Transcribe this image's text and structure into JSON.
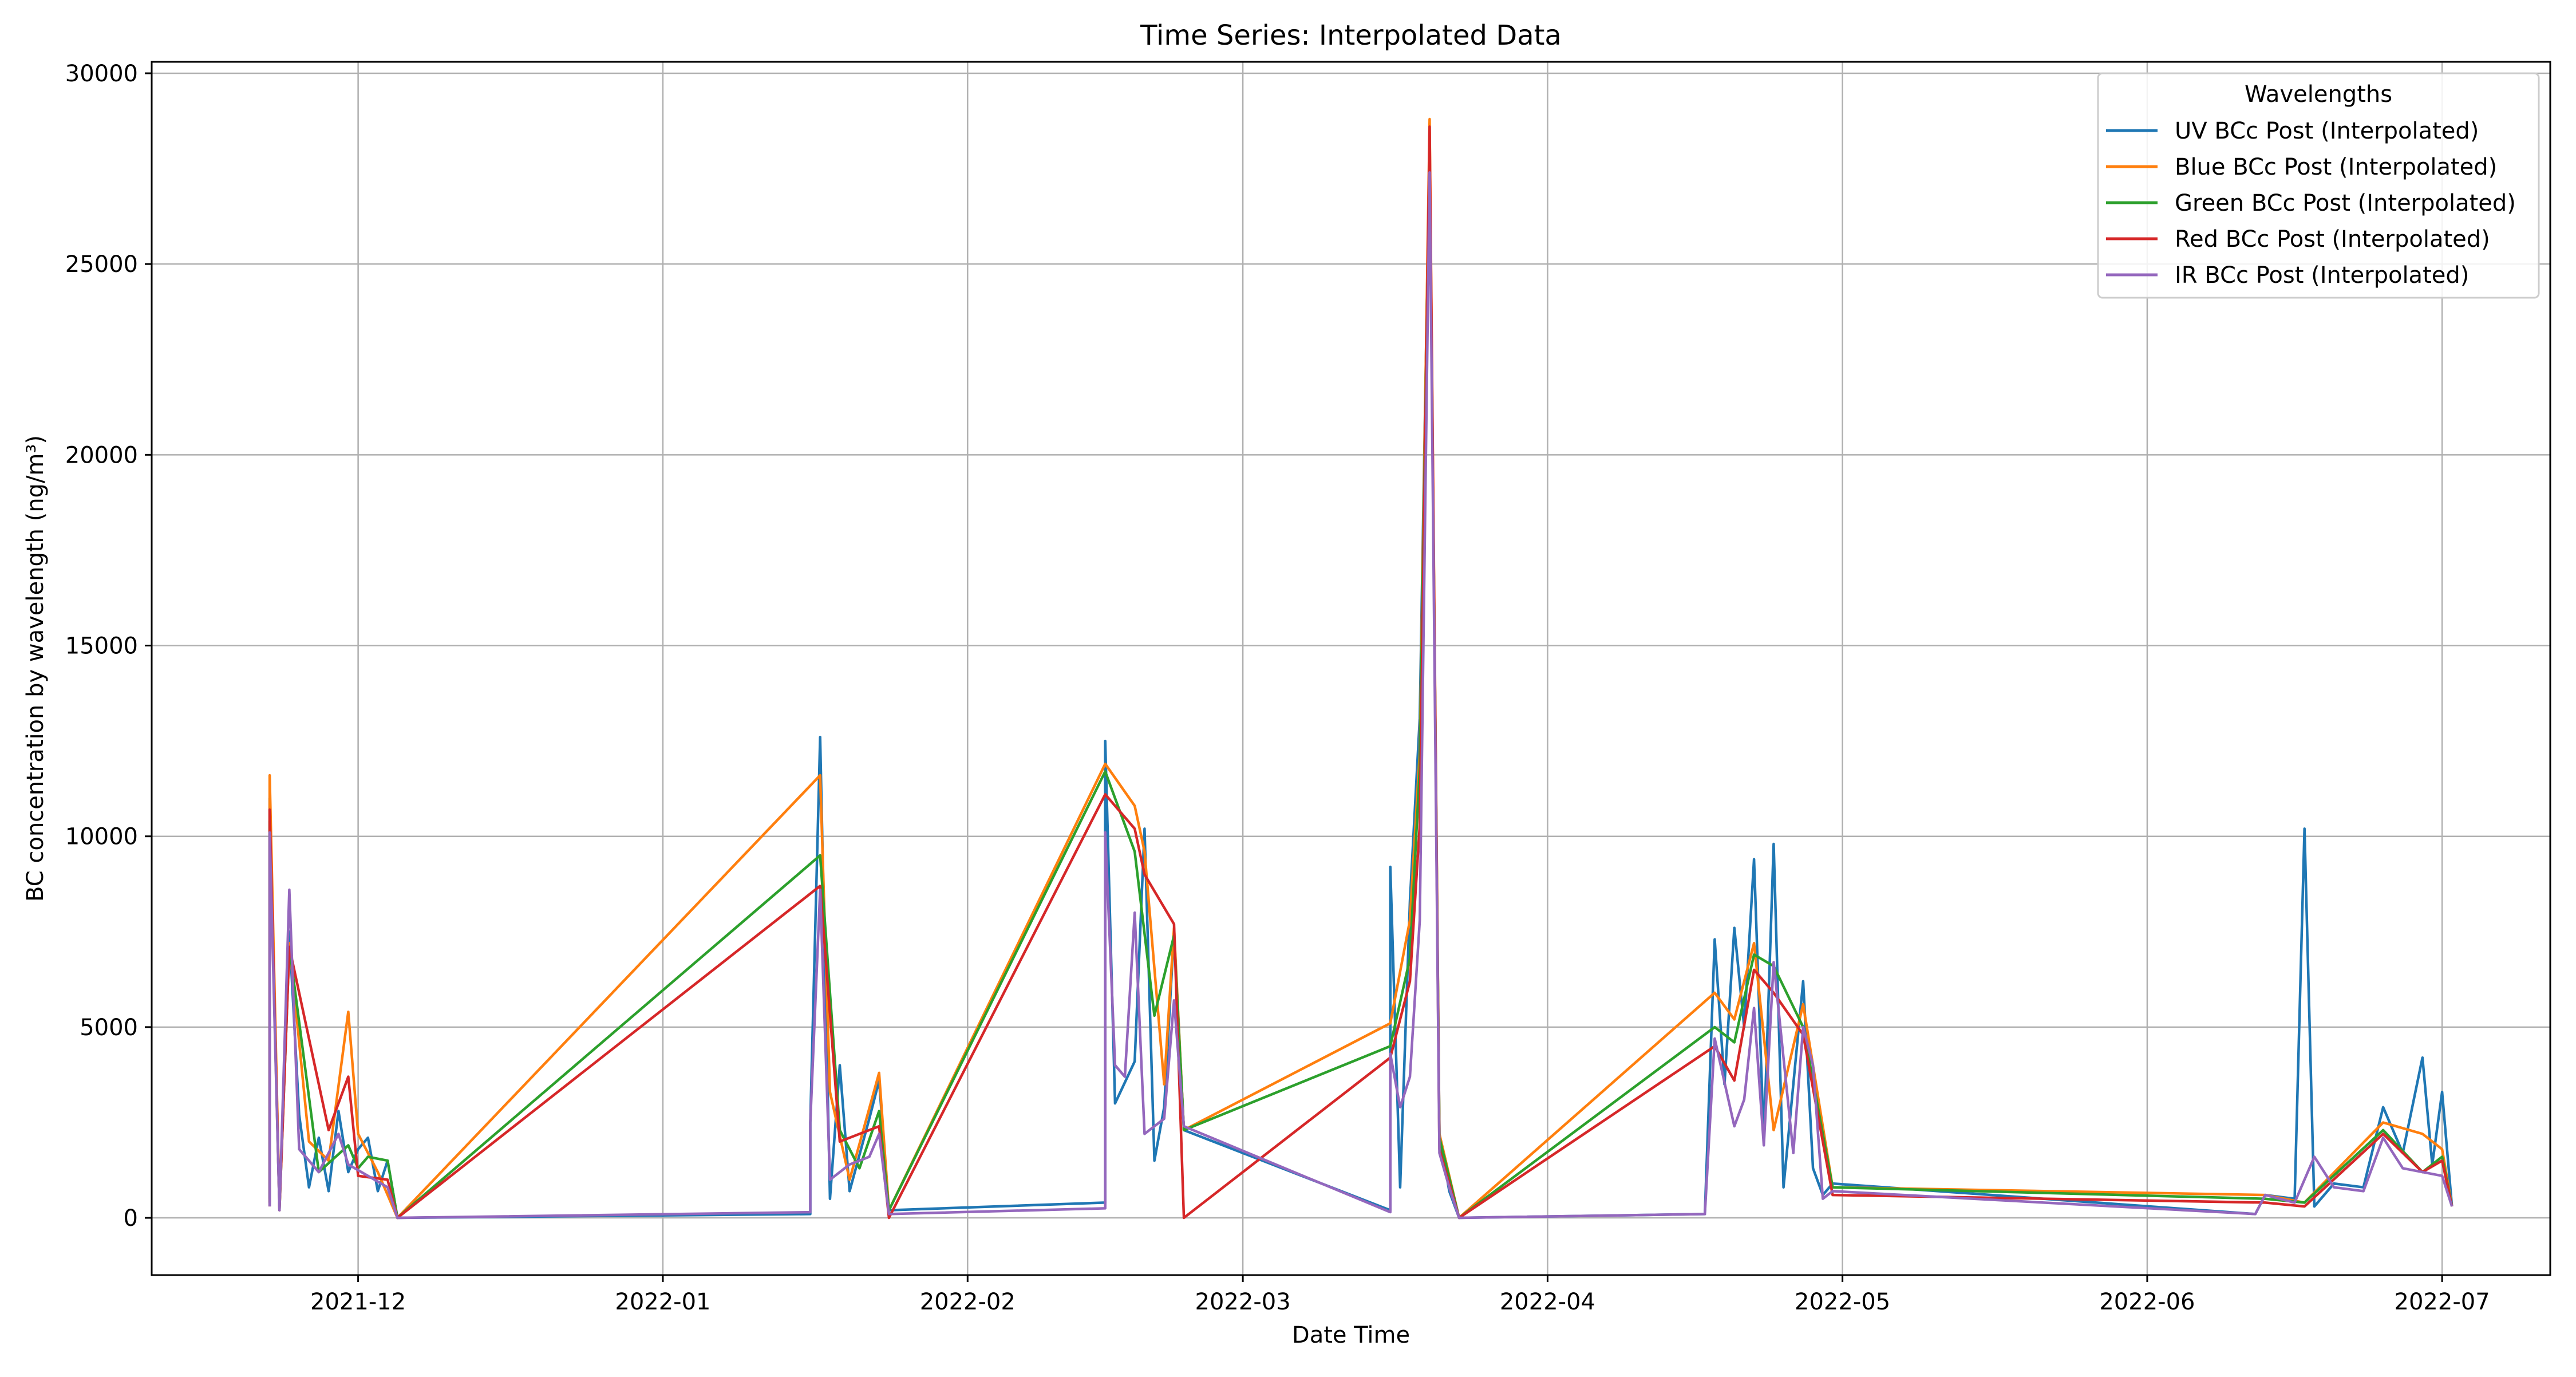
{
  "chart_data": {
    "type": "line",
    "title": "Time Series: Interpolated Data",
    "xlabel": "Date Time",
    "ylabel": "BC concentration by wavelength (ng/m³)",
    "x_tick_labels": [
      "2021-12",
      "2022-01",
      "2022-02",
      "2022-03",
      "2022-04",
      "2022-05",
      "2022-06",
      "2022-07"
    ],
    "x_tick_dates": [
      "2021-12-01",
      "2022-01-01",
      "2022-02-01",
      "2022-03-01",
      "2022-04-01",
      "2022-05-01",
      "2022-06-01",
      "2022-07-01"
    ],
    "xlim": [
      "2021-11-10",
      "2022-07-12"
    ],
    "y_ticks": [
      0,
      5000,
      10000,
      15000,
      20000,
      25000,
      30000
    ],
    "ylim": [
      -1500,
      30300
    ],
    "grid": true,
    "legend": {
      "title": "Wavelengths",
      "placement": "top-right"
    },
    "series": [
      {
        "name": "UV BCc Post (Interpolated)",
        "color": "#1f77b4",
        "points": [
          [
            "2021-11-22",
            500
          ],
          [
            "2021-11-22",
            11000
          ],
          [
            "2021-11-23",
            300
          ],
          [
            "2021-11-24",
            7500
          ],
          [
            "2021-11-25",
            2700
          ],
          [
            "2021-11-26",
            800
          ],
          [
            "2021-11-27",
            2100
          ],
          [
            "2021-11-28",
            700
          ],
          [
            "2021-11-29",
            2800
          ],
          [
            "2021-11-30",
            1200
          ],
          [
            "2021-12-01",
            1800
          ],
          [
            "2021-12-02",
            2100
          ],
          [
            "2021-12-03",
            700
          ],
          [
            "2021-12-04",
            1500
          ],
          [
            "2021-12-05",
            0
          ],
          [
            "2022-01-16",
            100
          ],
          [
            "2022-01-16",
            2500
          ],
          [
            "2022-01-17",
            12600
          ],
          [
            "2022-01-18",
            500
          ],
          [
            "2022-01-19",
            4000
          ],
          [
            "2022-01-20",
            700
          ],
          [
            "2022-01-22",
            2600
          ],
          [
            "2022-01-23",
            3600
          ],
          [
            "2022-01-24",
            200
          ],
          [
            "2022-02-15",
            400
          ],
          [
            "2022-02-15",
            12500
          ],
          [
            "2022-02-16",
            3000
          ],
          [
            "2022-02-18",
            4100
          ],
          [
            "2022-02-19",
            10200
          ],
          [
            "2022-02-20",
            1500
          ],
          [
            "2022-02-21",
            2900
          ],
          [
            "2022-02-22",
            7500
          ],
          [
            "2022-02-23",
            2300
          ],
          [
            "2022-03-16",
            200
          ],
          [
            "2022-03-16",
            9200
          ],
          [
            "2022-03-17",
            800
          ],
          [
            "2022-03-18",
            8300
          ],
          [
            "2022-03-19",
            13100
          ],
          [
            "2022-03-20",
            28200
          ],
          [
            "2022-03-21",
            2200
          ],
          [
            "2022-03-22",
            700
          ],
          [
            "2022-03-23",
            0
          ],
          [
            "2022-04-17",
            100
          ],
          [
            "2022-04-18",
            7300
          ],
          [
            "2022-04-19",
            3500
          ],
          [
            "2022-04-20",
            7600
          ],
          [
            "2022-04-21",
            5000
          ],
          [
            "2022-04-22",
            9400
          ],
          [
            "2022-04-23",
            2000
          ],
          [
            "2022-04-24",
            9800
          ],
          [
            "2022-04-25",
            800
          ],
          [
            "2022-04-27",
            6200
          ],
          [
            "2022-04-28",
            1300
          ],
          [
            "2022-04-29",
            600
          ],
          [
            "2022-04-30",
            900
          ],
          [
            "2022-06-12",
            100
          ],
          [
            "2022-06-13",
            600
          ],
          [
            "2022-06-16",
            500
          ],
          [
            "2022-06-17",
            10200
          ],
          [
            "2022-06-18",
            300
          ],
          [
            "2022-06-20",
            900
          ],
          [
            "2022-06-23",
            800
          ],
          [
            "2022-06-25",
            2900
          ],
          [
            "2022-06-27",
            1700
          ],
          [
            "2022-06-29",
            4200
          ],
          [
            "2022-06-30",
            1400
          ],
          [
            "2022-07-01",
            3300
          ],
          [
            "2022-07-02",
            300
          ]
        ]
      },
      {
        "name": "Blue BCc Post (Interpolated)",
        "color": "#ff7f0e",
        "points": [
          [
            "2021-11-22",
            400
          ],
          [
            "2021-11-22",
            11600
          ],
          [
            "2021-11-23",
            300
          ],
          [
            "2021-11-24",
            7200
          ],
          [
            "2021-11-26",
            2000
          ],
          [
            "2021-11-28",
            1500
          ],
          [
            "2021-11-30",
            5400
          ],
          [
            "2021-12-01",
            2200
          ],
          [
            "2021-12-03",
            1200
          ],
          [
            "2021-12-05",
            0
          ],
          [
            "2022-01-17",
            11600
          ],
          [
            "2022-01-18",
            3300
          ],
          [
            "2022-01-20",
            1000
          ],
          [
            "2022-01-23",
            3800
          ],
          [
            "2022-01-24",
            200
          ],
          [
            "2022-02-15",
            11900
          ],
          [
            "2022-02-18",
            10800
          ],
          [
            "2022-02-19",
            9600
          ],
          [
            "2022-02-21",
            3500
          ],
          [
            "2022-02-22",
            7600
          ],
          [
            "2022-02-23",
            2300
          ],
          [
            "2022-03-16",
            5100
          ],
          [
            "2022-03-18",
            7800
          ],
          [
            "2022-03-19",
            12200
          ],
          [
            "2022-03-20",
            28800
          ],
          [
            "2022-03-21",
            2200
          ],
          [
            "2022-03-23",
            0
          ],
          [
            "2022-04-18",
            5900
          ],
          [
            "2022-04-20",
            5200
          ],
          [
            "2022-04-22",
            7200
          ],
          [
            "2022-04-24",
            2300
          ],
          [
            "2022-04-27",
            5600
          ],
          [
            "2022-04-30",
            800
          ],
          [
            "2022-06-13",
            600
          ],
          [
            "2022-06-17",
            400
          ],
          [
            "2022-06-25",
            2500
          ],
          [
            "2022-06-29",
            2200
          ],
          [
            "2022-07-01",
            1800
          ],
          [
            "2022-07-02",
            300
          ]
        ]
      },
      {
        "name": "Green BCc Post (Interpolated)",
        "color": "#2ca02c",
        "points": [
          [
            "2021-11-22",
            400
          ],
          [
            "2021-11-22",
            10400
          ],
          [
            "2021-11-23",
            200
          ],
          [
            "2021-11-24",
            7100
          ],
          [
            "2021-11-27",
            1200
          ],
          [
            "2021-11-30",
            1900
          ],
          [
            "2021-12-01",
            1300
          ],
          [
            "2021-12-02",
            1600
          ],
          [
            "2021-12-04",
            1500
          ],
          [
            "2021-12-05",
            0
          ],
          [
            "2022-01-17",
            9500
          ],
          [
            "2022-01-19",
            2300
          ],
          [
            "2022-01-21",
            1300
          ],
          [
            "2022-01-23",
            2800
          ],
          [
            "2022-01-24",
            200
          ],
          [
            "2022-02-15",
            11700
          ],
          [
            "2022-02-18",
            9600
          ],
          [
            "2022-02-20",
            5300
          ],
          [
            "2022-02-22",
            7400
          ],
          [
            "2022-02-23",
            2300
          ],
          [
            "2022-03-16",
            4500
          ],
          [
            "2022-03-18",
            6800
          ],
          [
            "2022-03-19",
            11800
          ],
          [
            "2022-03-20",
            28100
          ],
          [
            "2022-03-21",
            2100
          ],
          [
            "2022-03-23",
            0
          ],
          [
            "2022-04-18",
            5000
          ],
          [
            "2022-04-20",
            4600
          ],
          [
            "2022-04-22",
            6900
          ],
          [
            "2022-04-24",
            6600
          ],
          [
            "2022-04-27",
            5000
          ],
          [
            "2022-04-30",
            800
          ],
          [
            "2022-06-13",
            500
          ],
          [
            "2022-06-17",
            400
          ],
          [
            "2022-06-25",
            2300
          ],
          [
            "2022-06-29",
            1200
          ],
          [
            "2022-07-01",
            1600
          ],
          [
            "2022-07-02",
            300
          ]
        ]
      },
      {
        "name": "Red BCc Post (Interpolated)",
        "color": "#d62728",
        "points": [
          [
            "2021-11-22",
            300
          ],
          [
            "2021-11-22",
            10700
          ],
          [
            "2021-11-23",
            200
          ],
          [
            "2021-11-24",
            7100
          ],
          [
            "2021-11-28",
            2300
          ],
          [
            "2021-11-30",
            3700
          ],
          [
            "2021-12-01",
            1100
          ],
          [
            "2021-12-04",
            1000
          ],
          [
            "2021-12-05",
            0
          ],
          [
            "2022-01-17",
            8700
          ],
          [
            "2022-01-19",
            2000
          ],
          [
            "2022-01-23",
            2400
          ],
          [
            "2022-01-24",
            0
          ],
          [
            "2022-02-15",
            11100
          ],
          [
            "2022-02-18",
            10200
          ],
          [
            "2022-02-19",
            9000
          ],
          [
            "2022-02-22",
            7700
          ],
          [
            "2022-02-23",
            0
          ],
          [
            "2022-03-16",
            4200
          ],
          [
            "2022-03-18",
            6200
          ],
          [
            "2022-03-19",
            10300
          ],
          [
            "2022-03-20",
            28600
          ],
          [
            "2022-03-21",
            1800
          ],
          [
            "2022-03-23",
            0
          ],
          [
            "2022-04-18",
            4500
          ],
          [
            "2022-04-20",
            3600
          ],
          [
            "2022-04-22",
            6500
          ],
          [
            "2022-04-24",
            5900
          ],
          [
            "2022-04-27",
            4800
          ],
          [
            "2022-04-30",
            600
          ],
          [
            "2022-06-13",
            400
          ],
          [
            "2022-06-17",
            300
          ],
          [
            "2022-06-25",
            2200
          ],
          [
            "2022-06-29",
            1200
          ],
          [
            "2022-07-01",
            1500
          ],
          [
            "2022-07-02",
            300
          ]
        ]
      },
      {
        "name": "IR BCc Post (Interpolated)",
        "color": "#9467bd",
        "points": [
          [
            "2021-11-22",
            300
          ],
          [
            "2021-11-22",
            10100
          ],
          [
            "2021-11-23",
            200
          ],
          [
            "2021-11-24",
            8600
          ],
          [
            "2021-11-25",
            1800
          ],
          [
            "2021-11-27",
            1200
          ],
          [
            "2021-11-29",
            2200
          ],
          [
            "2021-11-30",
            1400
          ],
          [
            "2021-12-02",
            1100
          ],
          [
            "2021-12-04",
            800
          ],
          [
            "2021-12-05",
            0
          ],
          [
            "2022-01-16",
            150
          ],
          [
            "2022-01-16",
            2500
          ],
          [
            "2022-01-17",
            8600
          ],
          [
            "2022-01-18",
            1000
          ],
          [
            "2022-01-20",
            1400
          ],
          [
            "2022-01-22",
            1600
          ],
          [
            "2022-01-23",
            2200
          ],
          [
            "2022-01-24",
            100
          ],
          [
            "2022-02-15",
            250
          ],
          [
            "2022-02-15",
            10100
          ],
          [
            "2022-02-16",
            4000
          ],
          [
            "2022-02-17",
            3700
          ],
          [
            "2022-02-18",
            8000
          ],
          [
            "2022-02-19",
            2200
          ],
          [
            "2022-02-21",
            2600
          ],
          [
            "2022-02-22",
            5700
          ],
          [
            "2022-02-23",
            2400
          ],
          [
            "2022-03-16",
            150
          ],
          [
            "2022-03-16",
            4300
          ],
          [
            "2022-03-17",
            2900
          ],
          [
            "2022-03-18",
            3700
          ],
          [
            "2022-03-19",
            7800
          ],
          [
            "2022-03-20",
            27400
          ],
          [
            "2022-03-21",
            1700
          ],
          [
            "2022-03-22",
            800
          ],
          [
            "2022-03-23",
            0
          ],
          [
            "2022-04-17",
            100
          ],
          [
            "2022-04-18",
            4700
          ],
          [
            "2022-04-20",
            2400
          ],
          [
            "2022-04-21",
            3100
          ],
          [
            "2022-04-22",
            5500
          ],
          [
            "2022-04-23",
            1900
          ],
          [
            "2022-04-24",
            6700
          ],
          [
            "2022-04-26",
            1700
          ],
          [
            "2022-04-27",
            5000
          ],
          [
            "2022-04-28",
            4000
          ],
          [
            "2022-04-29",
            500
          ],
          [
            "2022-04-30",
            700
          ],
          [
            "2022-06-12",
            100
          ],
          [
            "2022-06-13",
            600
          ],
          [
            "2022-06-16",
            400
          ],
          [
            "2022-06-18",
            1600
          ],
          [
            "2022-06-20",
            800
          ],
          [
            "2022-06-23",
            700
          ],
          [
            "2022-06-25",
            2100
          ],
          [
            "2022-06-27",
            1300
          ],
          [
            "2022-06-29",
            1200
          ],
          [
            "2022-07-01",
            1100
          ],
          [
            "2022-07-02",
            300
          ]
        ]
      }
    ]
  }
}
